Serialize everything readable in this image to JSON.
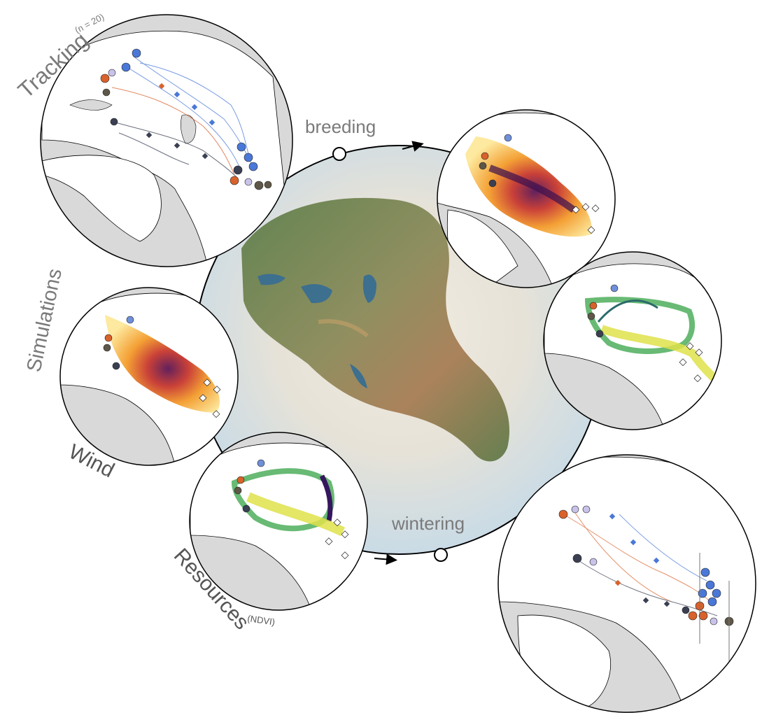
{
  "labels": {
    "tracking": "Tracking",
    "tracking_n": "(n = 20)",
    "simulations": "Simulations",
    "wind": "Wind",
    "resources": "Resources",
    "resources_sub": "(NDVI)",
    "breeding": "breeding",
    "wintering": "wintering"
  },
  "colors": {
    "land": "#ffffff",
    "sea": "#d9d9d9",
    "globe_sea": "#cfe0ea",
    "heat_low": "#fdf3a6",
    "heat_mid": "#f08a24",
    "heat_high": "#3b0f4f",
    "ndvi_low": "#eef06a",
    "ndvi_mid": "#58b45c",
    "ndvi_high": "#34175e",
    "track_blue": "#4a78d8",
    "track_orange": "#d9622b",
    "track_dark": "#3a3f52",
    "track_brown": "#5e5748",
    "track_lilac": "#c9c3ea"
  },
  "icons": [
    "breeding-node-icon",
    "wintering-node-icon",
    "cycle-arrow-icon"
  ]
}
